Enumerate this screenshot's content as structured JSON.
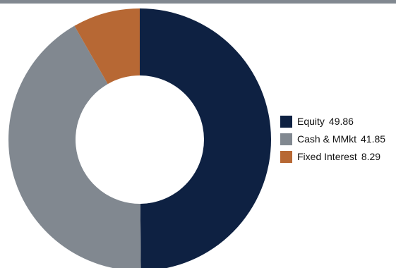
{
  "chart_data": {
    "type": "pie",
    "donut": true,
    "title": "",
    "categories": [
      "Equity",
      "Cash & MMkt",
      "Fixed Interest"
    ],
    "values": [
      49.86,
      41.85,
      8.29
    ],
    "value_labels": [
      "49.86",
      "41.85",
      "8.29"
    ],
    "colors": [
      "#0e2142",
      "#818890",
      "#b76834"
    ],
    "legend_placement": "right"
  }
}
